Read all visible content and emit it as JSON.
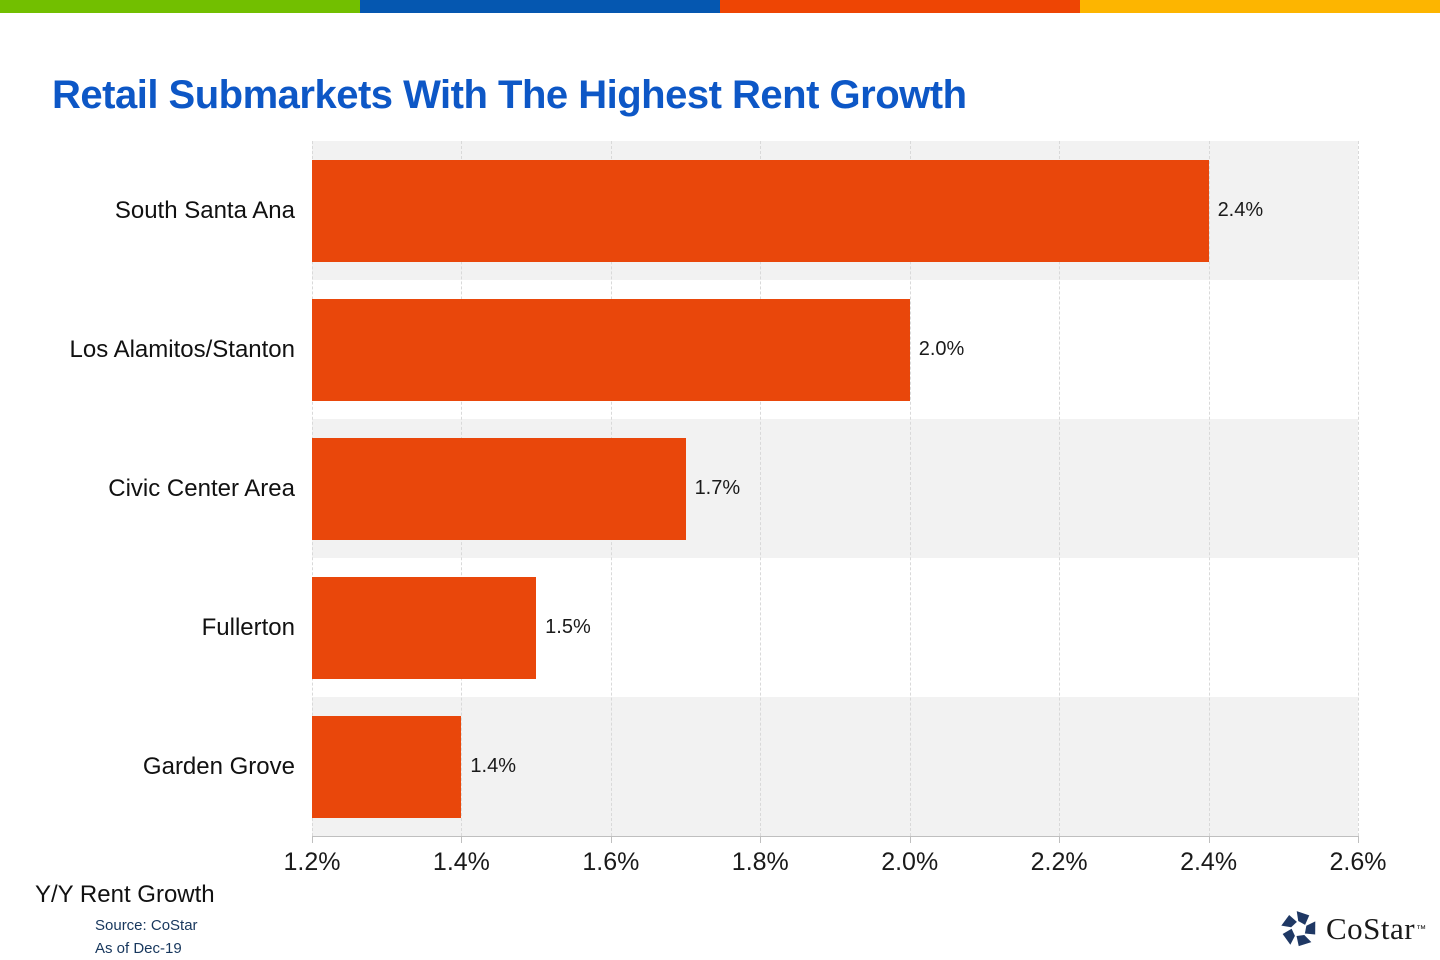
{
  "stripe": {
    "segments": [
      {
        "name": "green",
        "color": "#72bf00"
      },
      {
        "name": "blue",
        "color": "#0557b0"
      },
      {
        "name": "orange",
        "color": "#ee4504"
      },
      {
        "name": "yellow",
        "color": "#fdb500"
      }
    ]
  },
  "title": "Retail Submarkets With The Highest Rent Growth",
  "chart_data": {
    "type": "bar",
    "orientation": "horizontal",
    "title": "Retail Submarkets With The Highest Rent Growth",
    "categories": [
      "South Santa Ana",
      "Los Alamitos/Stanton",
      "Civic Center Area",
      "Fullerton",
      "Garden Grove"
    ],
    "values": [
      2.4,
      2.0,
      1.7,
      1.5,
      1.4
    ],
    "value_labels": [
      "2.4%",
      "2.0%",
      "1.7%",
      "1.5%",
      "1.4%"
    ],
    "xlabel": "Y/Y Rent Growth",
    "ylabel": "",
    "xlim": [
      1.2,
      2.6
    ],
    "xtick_values": [
      1.2,
      1.4,
      1.6,
      1.8,
      2.0,
      2.2,
      2.4,
      2.6
    ],
    "xtick_labels": [
      "1.2%",
      "1.4%",
      "1.6%",
      "1.8%",
      "2.0%",
      "2.2%",
      "2.4%",
      "2.6%"
    ],
    "grid": true,
    "legend": false,
    "bar_color": "#e9470b",
    "band_color": "#f2f2f2",
    "gridline_color": "#d9d9d9",
    "axis_color": "#bfbfbf"
  },
  "footer": {
    "xlabel": "Y/Y Rent Growth",
    "source": "Source: CoStar",
    "as_of": "As of Dec-19"
  },
  "logo": {
    "brand": "CoStar",
    "tm": "™",
    "icon_color": "#1f3864"
  }
}
